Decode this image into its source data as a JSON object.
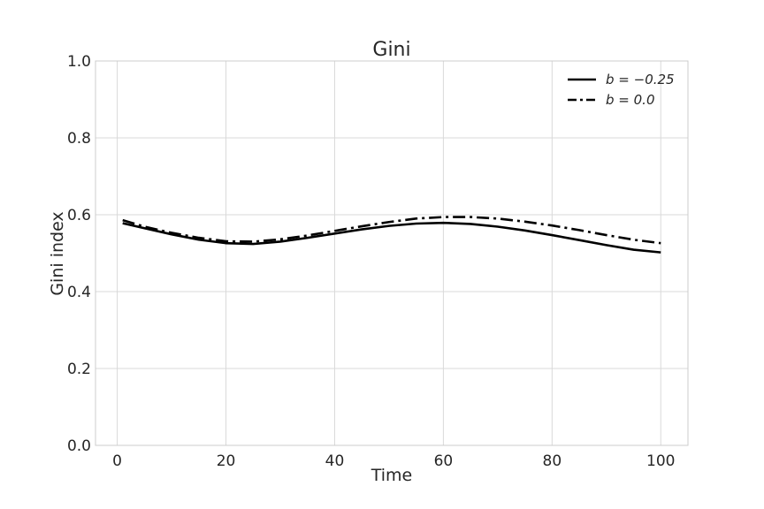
{
  "chart_data": {
    "type": "line",
    "title": "Gini",
    "xlabel": "Time",
    "ylabel": "Gini index",
    "xlim": [
      -4,
      105
    ],
    "ylim": [
      0.0,
      1.0
    ],
    "x_ticks": [
      "0",
      "20",
      "40",
      "60",
      "80",
      "100"
    ],
    "y_ticks": [
      "0.0",
      "0.2",
      "0.4",
      "0.6",
      "0.8",
      "1.0"
    ],
    "grid": true,
    "legend_position": "top-right",
    "series": [
      {
        "name": "b = −0.25",
        "style": "solid",
        "color": "#000000",
        "x": [
          1,
          5,
          10,
          15,
          20,
          25,
          30,
          35,
          40,
          45,
          50,
          55,
          60,
          65,
          70,
          75,
          80,
          85,
          90,
          95,
          100
        ],
        "y": [
          0.578,
          0.565,
          0.549,
          0.535,
          0.526,
          0.524,
          0.53,
          0.54,
          0.551,
          0.562,
          0.571,
          0.577,
          0.579,
          0.576,
          0.569,
          0.559,
          0.547,
          0.534,
          0.521,
          0.509,
          0.502
        ]
      },
      {
        "name": "b = 0.0",
        "style": "dashdot",
        "color": "#000000",
        "x": [
          1,
          5,
          10,
          15,
          20,
          25,
          30,
          35,
          40,
          45,
          50,
          55,
          60,
          65,
          70,
          75,
          80,
          85,
          90,
          95,
          100
        ],
        "y": [
          0.586,
          0.569,
          0.553,
          0.54,
          0.531,
          0.53,
          0.536,
          0.546,
          0.558,
          0.57,
          0.581,
          0.59,
          0.594,
          0.594,
          0.59,
          0.582,
          0.572,
          0.56,
          0.547,
          0.535,
          0.526
        ]
      }
    ]
  }
}
